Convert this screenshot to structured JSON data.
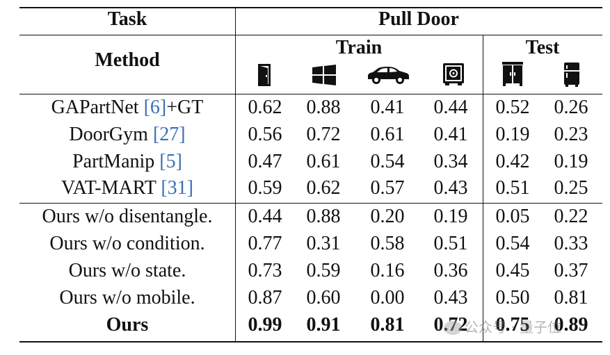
{
  "header": {
    "task_label": "Task",
    "method_label": "Method",
    "task_name": "Pull Door",
    "train_label": "Train",
    "test_label": "Test"
  },
  "icons": [
    "door-icon",
    "window-icon",
    "car-icon",
    "safe-icon",
    "cabinet-icon",
    "refrigerator-icon"
  ],
  "rows": [
    {
      "method": "GAPartNet ",
      "ref": "[6]",
      "suffix": "+GT",
      "values": [
        "0.62",
        "0.88",
        "0.41",
        "0.44",
        "0.52",
        "0.26"
      ]
    },
    {
      "method": "DoorGym ",
      "ref": "[27]",
      "suffix": "",
      "values": [
        "0.56",
        "0.72",
        "0.61",
        "0.41",
        "0.19",
        "0.23"
      ]
    },
    {
      "method": "PartManip ",
      "ref": "[5]",
      "suffix": "",
      "values": [
        "0.47",
        "0.61",
        "0.54",
        "0.34",
        "0.42",
        "0.19"
      ]
    },
    {
      "method": "VAT-MART ",
      "ref": "[31]",
      "suffix": "",
      "values": [
        "0.59",
        "0.62",
        "0.57",
        "0.43",
        "0.51",
        "0.25"
      ]
    },
    {
      "method": "Ours w/o disentangle.",
      "ref": "",
      "suffix": "",
      "values": [
        "0.44",
        "0.88",
        "0.20",
        "0.19",
        "0.05",
        "0.22"
      ]
    },
    {
      "method": "Ours w/o condition.",
      "ref": "",
      "suffix": "",
      "values": [
        "0.77",
        "0.31",
        "0.58",
        "0.51",
        "0.54",
        "0.33"
      ]
    },
    {
      "method": "Ours w/o state.",
      "ref": "",
      "suffix": "",
      "values": [
        "0.73",
        "0.59",
        "0.16",
        "0.36",
        "0.45",
        "0.37"
      ]
    },
    {
      "method": "Ours w/o mobile.",
      "ref": "",
      "suffix": "",
      "values": [
        "0.87",
        "0.60",
        "0.00",
        "0.43",
        "0.50",
        "0.81"
      ]
    },
    {
      "method": "Ours",
      "ref": "",
      "suffix": "",
      "values": [
        "0.99",
        "0.91",
        "0.81",
        "0.72",
        "0.75",
        "0.89"
      ],
      "bold": true
    }
  ],
  "watermark": "公众号 · 量子位"
}
